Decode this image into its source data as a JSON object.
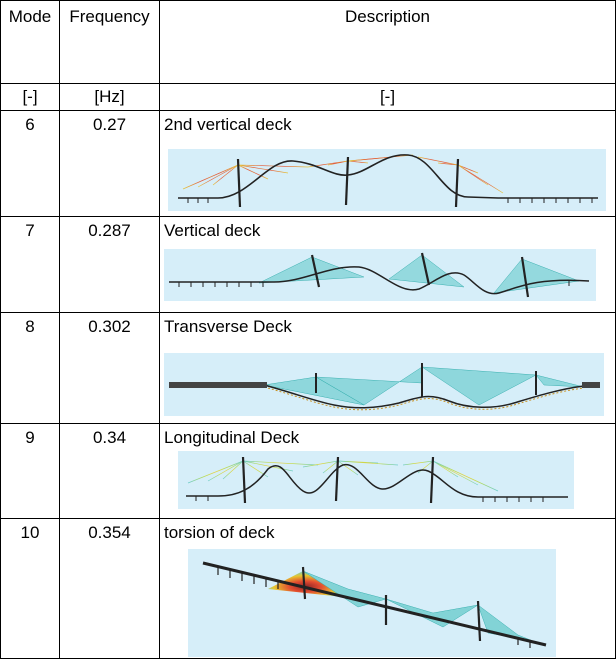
{
  "headers": {
    "mode": "Mode",
    "frequency": "Frequency",
    "description": "Description"
  },
  "units": {
    "mode": "[-]",
    "frequency": "[Hz]",
    "description": "[-]"
  },
  "rows": [
    {
      "mode": "6",
      "frequency": "0.27",
      "description": "2nd vertical deck"
    },
    {
      "mode": "7",
      "frequency": "0.287",
      "description": "Vertical deck"
    },
    {
      "mode": "8",
      "frequency": "0.302",
      "description": "Transverse Deck"
    },
    {
      "mode": "9",
      "frequency": "0.34",
      "description": "Longitudinal Deck"
    },
    {
      "mode": "10",
      "frequency": "0.354",
      "description": "torsion of deck"
    }
  ],
  "colors": {
    "panel": "#d6eef9",
    "cable_cool": "#5ec8c8",
    "cable_hot": "#e53b1a",
    "deck": "#222222"
  }
}
